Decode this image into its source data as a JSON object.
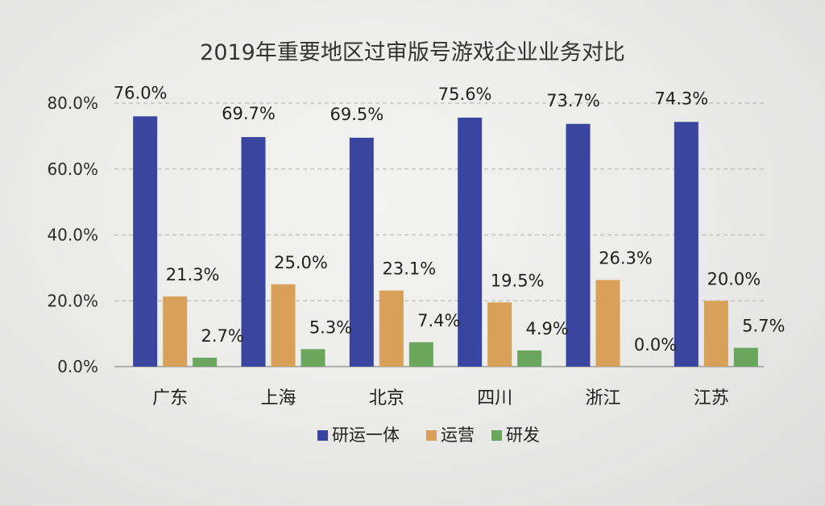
{
  "chart_data": {
    "type": "bar",
    "title": "2019年重要地区过审版号游戏企业业务对比",
    "categories": [
      "广东",
      "上海",
      "北京",
      "四川",
      "浙江",
      "江苏"
    ],
    "series": [
      {
        "name": "研运一体",
        "color": "#3a45a0",
        "values": [
          76.0,
          69.7,
          69.5,
          75.6,
          73.7,
          74.3
        ],
        "labels": [
          "76.0%",
          "69.7%",
          "69.5%",
          "75.6%",
          "73.7%",
          "74.3%"
        ]
      },
      {
        "name": "运营",
        "color": "#d9a059",
        "values": [
          21.3,
          25.0,
          23.1,
          19.5,
          26.3,
          20.0
        ],
        "labels": [
          "21.3%",
          "25.0%",
          "23.1%",
          "19.5%",
          "26.3%",
          "20.0%"
        ]
      },
      {
        "name": "研发",
        "color": "#6aa65c",
        "values": [
          2.7,
          5.3,
          7.4,
          4.9,
          0.0,
          5.7
        ],
        "labels": [
          "2.7%",
          "5.3%",
          "7.4%",
          "4.9%",
          "0.0%",
          "5.7%"
        ]
      }
    ],
    "ylim": [
      0,
      80
    ],
    "yticks": [
      "0.0%",
      "20.0%",
      "40.0%",
      "60.0%",
      "80.0%"
    ],
    "ytick_values": [
      0,
      20,
      40,
      60,
      80
    ],
    "grid": true,
    "legend_position": "bottom-center"
  }
}
